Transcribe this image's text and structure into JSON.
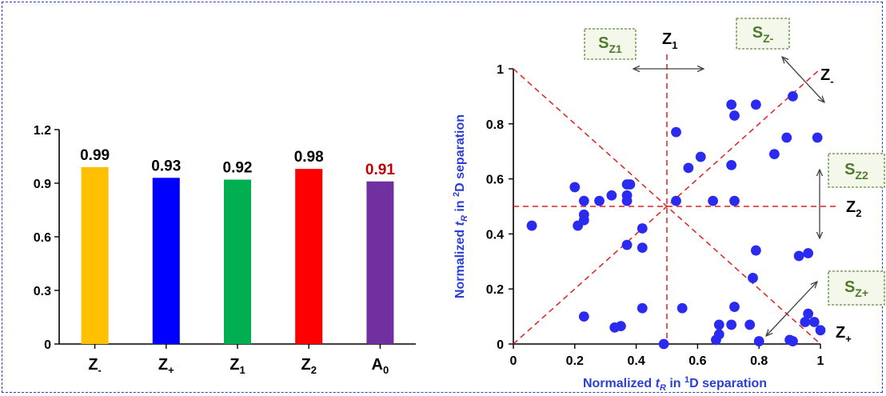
{
  "colors": {
    "frame": "#2a3fd6",
    "points": "#2a2af0",
    "red_line": "#e02020",
    "s_box_border": "#5f8f3a",
    "s_box_fill": "#f3f8ea",
    "s_label": "#4f7a2b",
    "highlight_label": "#c00000"
  },
  "chart_data": [
    {
      "type": "bar",
      "categories": [
        "Z-",
        "Z+",
        "Z1",
        "Z2",
        "A0"
      ],
      "category_display": [
        {
          "base": "Z",
          "sub": "-"
        },
        {
          "base": "Z",
          "sub": "+"
        },
        {
          "base": "Z",
          "sub": "1"
        },
        {
          "base": "Z",
          "sub": "2"
        },
        {
          "base": "A",
          "sub": "0"
        }
      ],
      "values": [
        0.99,
        0.93,
        0.92,
        0.98,
        0.91
      ],
      "data_labels": [
        "0.99",
        "0.93",
        "0.92",
        "0.98",
        "0.91"
      ],
      "bar_colors": [
        "#ffc000",
        "#0000ff",
        "#00b050",
        "#ff0000",
        "#7030a0"
      ],
      "label_colors": [
        "#000000",
        "#000000",
        "#000000",
        "#000000",
        "#c00000"
      ],
      "ylim": [
        0,
        1.2
      ],
      "yticks": [
        "0",
        "0.3",
        "0.6",
        "0.9",
        "1.2"
      ],
      "grid": false,
      "title": "",
      "xlabel": "",
      "ylabel": ""
    },
    {
      "type": "scatter",
      "xlim": [
        0,
        1
      ],
      "ylim": [
        0,
        1
      ],
      "xticks": [
        "0",
        "0.2",
        "0.4",
        "0.6",
        "0.8",
        "1"
      ],
      "yticks": [
        "0",
        "0.2",
        "0.4",
        "0.6",
        "0.8",
        "1"
      ],
      "xlabel": {
        "pre": "Normalized ",
        "var": "t",
        "sub": "R",
        "mid": " in ",
        "sup": "1",
        "post": "D separation"
      },
      "ylabel": {
        "pre": "Normalized ",
        "var": "t",
        "sub": "R",
        "mid": " in ",
        "sup": "2",
        "post": "D separation"
      },
      "grid": false,
      "points": [
        [
          0.06,
          0.43
        ],
        [
          0.2,
          0.57
        ],
        [
          0.21,
          0.43
        ],
        [
          0.23,
          0.45
        ],
        [
          0.23,
          0.47
        ],
        [
          0.23,
          0.52
        ],
        [
          0.28,
          0.52
        ],
        [
          0.32,
          0.54
        ],
        [
          0.37,
          0.58
        ],
        [
          0.37,
          0.54
        ],
        [
          0.37,
          0.52
        ],
        [
          0.38,
          0.58
        ],
        [
          0.37,
          0.36
        ],
        [
          0.42,
          0.42
        ],
        [
          0.42,
          0.35
        ],
        [
          0.23,
          0.1
        ],
        [
          0.33,
          0.06
        ],
        [
          0.35,
          0.065
        ],
        [
          0.42,
          0.13
        ],
        [
          0.49,
          0.0
        ],
        [
          0.53,
          0.77
        ],
        [
          0.53,
          0.52
        ],
        [
          0.55,
          0.13
        ],
        [
          0.57,
          0.64
        ],
        [
          0.61,
          0.68
        ],
        [
          0.65,
          0.52
        ],
        [
          0.66,
          0.015
        ],
        [
          0.67,
          0.07
        ],
        [
          0.67,
          0.035
        ],
        [
          0.71,
          0.07
        ],
        [
          0.71,
          0.87
        ],
        [
          0.71,
          0.65
        ],
        [
          0.72,
          0.83
        ],
        [
          0.72,
          0.52
        ],
        [
          0.72,
          0.135
        ],
        [
          0.77,
          0.07
        ],
        [
          0.78,
          0.24
        ],
        [
          0.79,
          0.87
        ],
        [
          0.8,
          0.01
        ],
        [
          0.79,
          0.34
        ],
        [
          0.85,
          0.69
        ],
        [
          0.89,
          0.75
        ],
        [
          0.9,
          0.015
        ],
        [
          0.91,
          0.01
        ],
        [
          0.91,
          0.9
        ],
        [
          0.93,
          0.32
        ],
        [
          0.95,
          0.08
        ],
        [
          0.96,
          0.33
        ],
        [
          0.96,
          0.11
        ],
        [
          0.98,
          0.08
        ],
        [
          0.99,
          0.75
        ],
        [
          1.0,
          0.05
        ]
      ],
      "lines": [
        "x = 0.5",
        "y = 0.5",
        "y = x",
        "y = 1 - x"
      ],
      "line_labels": [
        {
          "base": "Z",
          "sub": "1"
        },
        {
          "base": "Z",
          "sub": "-"
        },
        {
          "base": "Z",
          "sub": "2"
        },
        {
          "base": "Z",
          "sub": "+"
        }
      ],
      "region_labels": [
        {
          "base": "S",
          "sub": "Z1"
        },
        {
          "base": "S",
          "sub": "Z-"
        },
        {
          "base": "S",
          "sub": "Z2"
        },
        {
          "base": "S",
          "sub": "Z+"
        }
      ]
    }
  ]
}
